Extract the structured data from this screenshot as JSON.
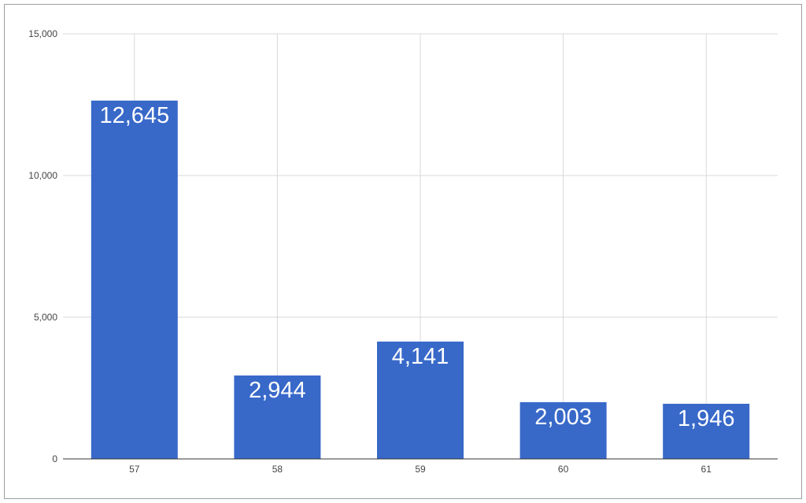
{
  "chart_data": {
    "type": "bar",
    "categories": [
      "57",
      "58",
      "59",
      "60",
      "61"
    ],
    "values": [
      12645,
      2944,
      4141,
      2003,
      1946
    ],
    "data_labels": [
      "12,645",
      "2,944",
      "4,141",
      "2,003",
      "1,946"
    ],
    "y_ticks": [
      0,
      5000,
      10000,
      15000
    ],
    "y_tick_labels": [
      "0",
      "5,000",
      "10,000",
      "15,000"
    ],
    "ylim": [
      0,
      15000
    ],
    "title": "",
    "xlabel": "",
    "ylabel": "",
    "bar_color": "#3869c9",
    "grid": true,
    "legend": false
  }
}
